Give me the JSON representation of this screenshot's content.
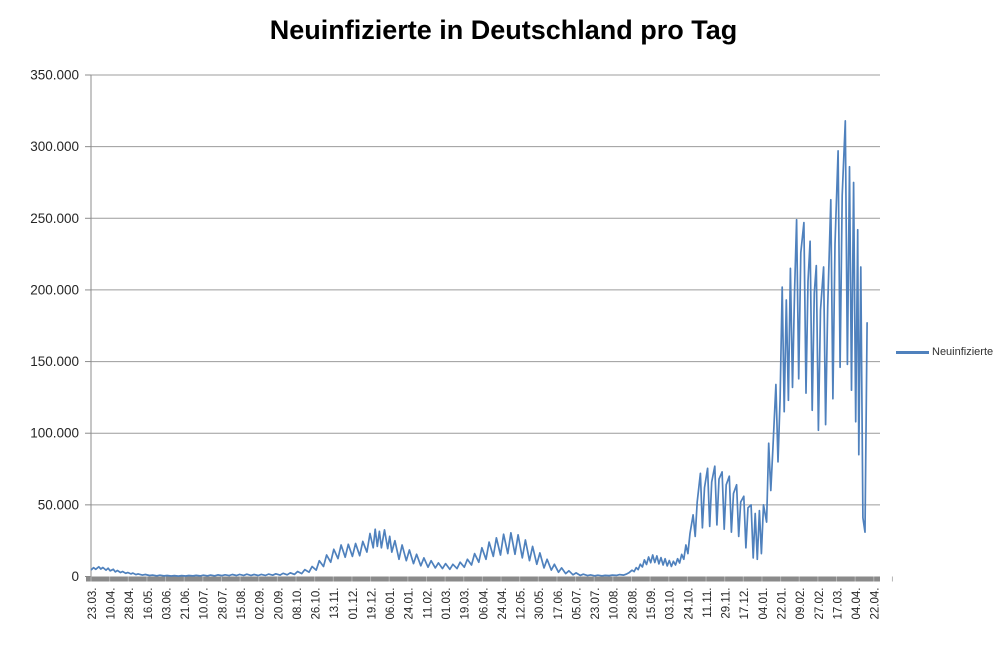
{
  "chart_data": {
    "type": "line",
    "title": "Neuinfizierte in Deutschland pro Tag",
    "legend_position": "right",
    "grid": "horizontal-only",
    "colors": {
      "series": "#4F81BD",
      "gridline": "#9c9c9c",
      "axis_line": "#8c8c8c",
      "axis_band": "#8a8a8a",
      "axis_band_notch": "#b5b5b5",
      "tick_text": "#262626",
      "title_text": "#000000"
    },
    "y_axis": {
      "min": 0,
      "max": 350000,
      "tick_step": 50000,
      "tick_labels": [
        "0",
        "50.000",
        "100.000",
        "150.000",
        "200.000",
        "250.000",
        "300.000",
        "350.000"
      ]
    },
    "x_axis": {
      "total_days": 762,
      "label_interval_days": 18,
      "tick_labels": [
        "23.03.",
        "10.04.",
        "28.04.",
        "16.05.",
        "03.06.",
        "21.06.",
        "10.07.",
        "28.07.",
        "15.08.",
        "02.09.",
        "20.09.",
        "08.10.",
        "26.10.",
        "13.11.",
        "01.12.",
        "19.12.",
        "06.01.",
        "24.01.",
        "11.02.",
        "01.03.",
        "19.03.",
        "06.04.",
        "24.04.",
        "12.05.",
        "30.05.",
        "17.06.",
        "05.07.",
        "23.07.",
        "10.08.",
        "28.08.",
        "15.09.",
        "03.10.",
        "24.10.",
        "11.11.",
        "29.11.",
        "17.12.",
        "04.01.",
        "22.01.",
        "09.02.",
        "27.02.",
        "17.03.",
        "04.04.",
        "22.04."
      ]
    },
    "series": [
      {
        "name": "Neuinfizierte",
        "points": [
          [
            0,
            4800
          ],
          [
            2,
            6200
          ],
          [
            4,
            5000
          ],
          [
            7,
            6800
          ],
          [
            9,
            5200
          ],
          [
            11,
            6300
          ],
          [
            14,
            4500
          ],
          [
            16,
            5800
          ],
          [
            18,
            4000
          ],
          [
            21,
            5000
          ],
          [
            23,
            3200
          ],
          [
            25,
            4200
          ],
          [
            28,
            2800
          ],
          [
            30,
            3500
          ],
          [
            33,
            2200
          ],
          [
            35,
            2800
          ],
          [
            38,
            1800
          ],
          [
            40,
            2400
          ],
          [
            43,
            1300
          ],
          [
            45,
            1800
          ],
          [
            49,
            1000
          ],
          [
            52,
            1400
          ],
          [
            56,
            700
          ],
          [
            59,
            1000
          ],
          [
            63,
            500
          ],
          [
            66,
            900
          ],
          [
            70,
            400
          ],
          [
            73,
            700
          ],
          [
            77,
            350
          ],
          [
            80,
            600
          ],
          [
            84,
            300
          ],
          [
            87,
            600
          ],
          [
            91,
            350
          ],
          [
            94,
            700
          ],
          [
            98,
            400
          ],
          [
            101,
            800
          ],
          [
            105,
            400
          ],
          [
            108,
            900
          ],
          [
            112,
            500
          ],
          [
            115,
            1000
          ],
          [
            119,
            500
          ],
          [
            122,
            1100
          ],
          [
            126,
            600
          ],
          [
            129,
            1200
          ],
          [
            133,
            600
          ],
          [
            136,
            1400
          ],
          [
            140,
            700
          ],
          [
            143,
            1500
          ],
          [
            147,
            800
          ],
          [
            150,
            1600
          ],
          [
            154,
            800
          ],
          [
            157,
            1400
          ],
          [
            161,
            700
          ],
          [
            164,
            1500
          ],
          [
            168,
            800
          ],
          [
            171,
            1700
          ],
          [
            175,
            900
          ],
          [
            178,
            1900
          ],
          [
            182,
            1000
          ],
          [
            185,
            2200
          ],
          [
            189,
            1200
          ],
          [
            192,
            2600
          ],
          [
            196,
            1500
          ],
          [
            199,
            3500
          ],
          [
            203,
            2000
          ],
          [
            206,
            4800
          ],
          [
            210,
            3000
          ],
          [
            213,
            7000
          ],
          [
            217,
            4500
          ],
          [
            220,
            11000
          ],
          [
            224,
            7000
          ],
          [
            227,
            15000
          ],
          [
            231,
            10000
          ],
          [
            234,
            19000
          ],
          [
            238,
            12500
          ],
          [
            241,
            22000
          ],
          [
            245,
            13500
          ],
          [
            248,
            22500
          ],
          [
            252,
            14000
          ],
          [
            255,
            23000
          ],
          [
            259,
            14500
          ],
          [
            262,
            24500
          ],
          [
            266,
            17000
          ],
          [
            269,
            30000
          ],
          [
            272,
            20000
          ],
          [
            274,
            33000
          ],
          [
            276,
            21000
          ],
          [
            278,
            31500
          ],
          [
            280,
            20000
          ],
          [
            283,
            32500
          ],
          [
            286,
            19500
          ],
          [
            288,
            28000
          ],
          [
            290,
            17000
          ],
          [
            293,
            25000
          ],
          [
            297,
            12000
          ],
          [
            300,
            22000
          ],
          [
            304,
            11000
          ],
          [
            307,
            18500
          ],
          [
            311,
            9000
          ],
          [
            314,
            15500
          ],
          [
            318,
            7500
          ],
          [
            321,
            13000
          ],
          [
            325,
            6500
          ],
          [
            328,
            11000
          ],
          [
            332,
            6000
          ],
          [
            335,
            9500
          ],
          [
            339,
            5500
          ],
          [
            342,
            9000
          ],
          [
            346,
            5000
          ],
          [
            349,
            8500
          ],
          [
            353,
            5500
          ],
          [
            356,
            10000
          ],
          [
            360,
            6500
          ],
          [
            363,
            12000
          ],
          [
            367,
            8000
          ],
          [
            370,
            16000
          ],
          [
            374,
            10000
          ],
          [
            377,
            20000
          ],
          [
            381,
            12000
          ],
          [
            384,
            24000
          ],
          [
            388,
            14000
          ],
          [
            391,
            27000
          ],
          [
            395,
            15000
          ],
          [
            398,
            29500
          ],
          [
            402,
            16000
          ],
          [
            405,
            30500
          ],
          [
            409,
            15500
          ],
          [
            412,
            29000
          ],
          [
            416,
            13000
          ],
          [
            419,
            25500
          ],
          [
            423,
            11000
          ],
          [
            426,
            21000
          ],
          [
            430,
            8500
          ],
          [
            433,
            16500
          ],
          [
            437,
            6000
          ],
          [
            440,
            12000
          ],
          [
            444,
            4500
          ],
          [
            447,
            8500
          ],
          [
            451,
            3000
          ],
          [
            454,
            6000
          ],
          [
            458,
            2000
          ],
          [
            461,
            4000
          ],
          [
            465,
            1200
          ],
          [
            468,
            2500
          ],
          [
            472,
            800
          ],
          [
            475,
            1600
          ],
          [
            479,
            600
          ],
          [
            482,
            1100
          ],
          [
            486,
            500
          ],
          [
            489,
            900
          ],
          [
            493,
            500
          ],
          [
            496,
            800
          ],
          [
            500,
            600
          ],
          [
            503,
            1000
          ],
          [
            507,
            800
          ],
          [
            510,
            1300
          ],
          [
            514,
            1000
          ],
          [
            517,
            1800
          ],
          [
            519,
            2600
          ],
          [
            522,
            4400
          ],
          [
            524,
            3400
          ],
          [
            526,
            6200
          ],
          [
            528,
            4800
          ],
          [
            530,
            8600
          ],
          [
            532,
            6600
          ],
          [
            534,
            11600
          ],
          [
            536,
            8400
          ],
          [
            538,
            13600
          ],
          [
            540,
            9600
          ],
          [
            542,
            15000
          ],
          [
            544,
            9800
          ],
          [
            546,
            14400
          ],
          [
            548,
            8800
          ],
          [
            550,
            13200
          ],
          [
            552,
            8000
          ],
          [
            554,
            12400
          ],
          [
            556,
            7400
          ],
          [
            558,
            11200
          ],
          [
            560,
            7000
          ],
          [
            562,
            10600
          ],
          [
            564,
            8000
          ],
          [
            566,
            12400
          ],
          [
            568,
            9400
          ],
          [
            570,
            15400
          ],
          [
            572,
            12000
          ],
          [
            574,
            22000
          ],
          [
            576,
            16000
          ],
          [
            578,
            30000
          ],
          [
            581,
            43000
          ],
          [
            583,
            28000
          ],
          [
            585,
            52000
          ],
          [
            588,
            72000
          ],
          [
            590,
            34000
          ],
          [
            592,
            62000
          ],
          [
            595,
            75500
          ],
          [
            597,
            35000
          ],
          [
            599,
            66000
          ],
          [
            602,
            77000
          ],
          [
            604,
            36000
          ],
          [
            606,
            68000
          ],
          [
            609,
            73000
          ],
          [
            611,
            33000
          ],
          [
            613,
            64000
          ],
          [
            616,
            70000
          ],
          [
            618,
            31000
          ],
          [
            620,
            58000
          ],
          [
            623,
            64000
          ],
          [
            625,
            28000
          ],
          [
            627,
            52000
          ],
          [
            630,
            56000
          ],
          [
            632,
            20000
          ],
          [
            634,
            48000
          ],
          [
            637,
            50000
          ],
          [
            639,
            13000
          ],
          [
            641,
            44000
          ],
          [
            643,
            12000
          ],
          [
            645,
            46000
          ],
          [
            647,
            16000
          ],
          [
            649,
            50000
          ],
          [
            652,
            38000
          ],
          [
            654,
            93000
          ],
          [
            656,
            60000
          ],
          [
            658,
            88000
          ],
          [
            661,
            134000
          ],
          [
            663,
            80000
          ],
          [
            665,
            124000
          ],
          [
            667,
            202000
          ],
          [
            669,
            115000
          ],
          [
            671,
            193000
          ],
          [
            673,
            123000
          ],
          [
            675,
            215000
          ],
          [
            677,
            132000
          ],
          [
            679,
            200000
          ],
          [
            681,
            249000
          ],
          [
            683,
            138000
          ],
          [
            685,
            226000
          ],
          [
            688,
            247000
          ],
          [
            690,
            128000
          ],
          [
            692,
            206000
          ],
          [
            694,
            234000
          ],
          [
            696,
            116000
          ],
          [
            698,
            198000
          ],
          [
            700,
            217000
          ],
          [
            702,
            102000
          ],
          [
            704,
            186000
          ],
          [
            707,
            216000
          ],
          [
            709,
            106000
          ],
          [
            711,
            188000
          ],
          [
            714,
            263000
          ],
          [
            716,
            124000
          ],
          [
            718,
            232000
          ],
          [
            721,
            297000
          ],
          [
            723,
            146000
          ],
          [
            725,
            266000
          ],
          [
            728,
            318000
          ],
          [
            730,
            148000
          ],
          [
            732,
            286000
          ],
          [
            734,
            130000
          ],
          [
            736,
            275000
          ],
          [
            738,
            108000
          ],
          [
            740,
            242000
          ],
          [
            741,
            85000
          ],
          [
            743,
            216000
          ],
          [
            745,
            41000
          ],
          [
            747,
            31000
          ],
          [
            749,
            177000
          ]
        ]
      }
    ]
  }
}
